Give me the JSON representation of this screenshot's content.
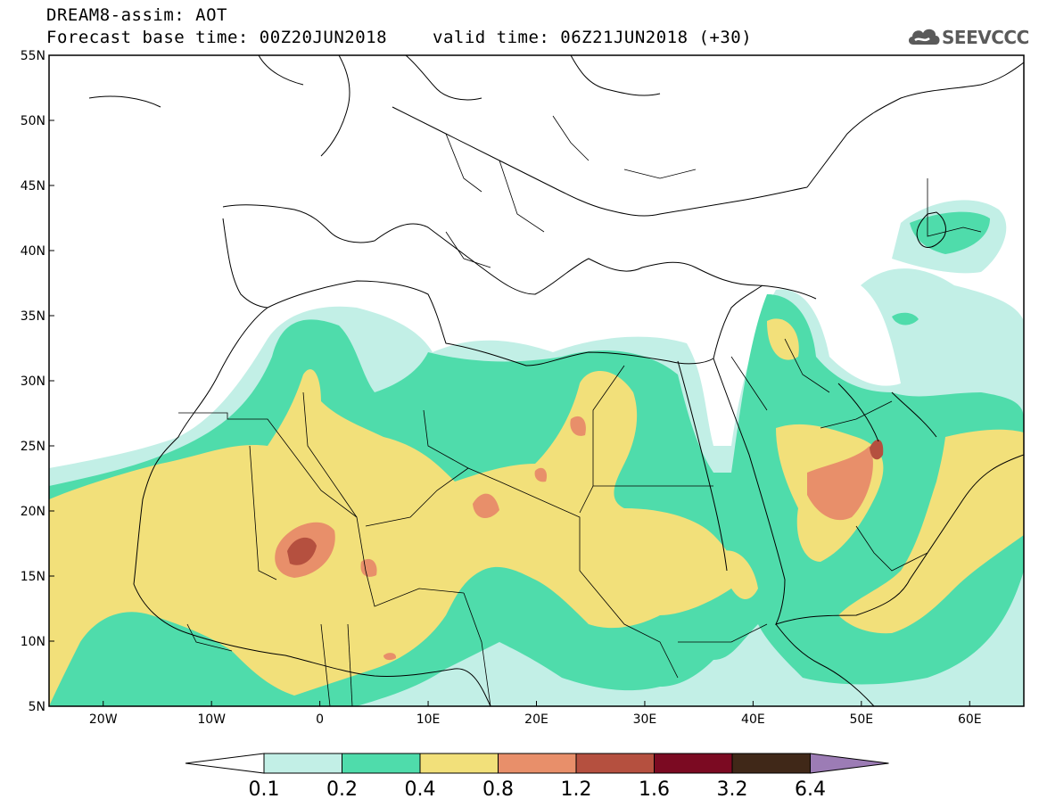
{
  "header": {
    "title_line1": "DREAM8-assim: AOT",
    "base_time": "Forecast base time: 00Z20JUN2018",
    "valid_time": "valid time: 06Z21JUN2018 (+30)",
    "logo_text": "SEEVCCC"
  },
  "map": {
    "lat_labels": [
      "55N",
      "50N",
      "45N",
      "40N",
      "35N",
      "30N",
      "25N",
      "20N",
      "15N",
      "10N",
      "5N"
    ],
    "lon_labels": [
      "20W",
      "10W",
      "0",
      "10E",
      "20E",
      "30E",
      "40E",
      "50E",
      "60E"
    ],
    "extent": {
      "lon_min": -25,
      "lon_max": 65,
      "lat_min": 5,
      "lat_max": 55
    },
    "field": "Aerosol optical thickness"
  },
  "colorbar": {
    "labels": [
      "0.1",
      "0.2",
      "0.4",
      "0.8",
      "1.2",
      "1.6",
      "3.2",
      "6.4"
    ],
    "colors": [
      "#c2efe6",
      "#4fdcab",
      "#f2e07a",
      "#e88f6a",
      "#b5503f",
      "#7b0a22",
      "#402818",
      "#9c7cb5"
    ],
    "under_color": "#ffffff"
  },
  "colors": {
    "aot_0_1": "#c2efe6",
    "aot_0_2": "#4fdcab",
    "aot_0_4": "#f2e07a",
    "aot_0_8": "#e88f6a",
    "aot_1_2": "#b5503f"
  }
}
